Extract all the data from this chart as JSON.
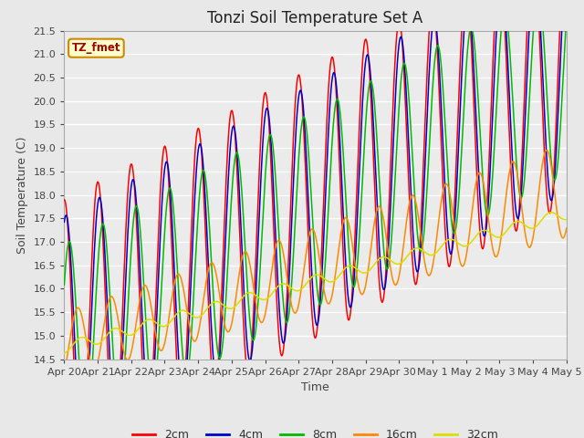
{
  "title": "Tonzi Soil Temperature Set A",
  "xlabel": "Time",
  "ylabel": "Soil Temperature (C)",
  "annotation": "TZ_fmet",
  "ylim": [
    14.5,
    21.5
  ],
  "series_colors": {
    "2cm": "#ff0000",
    "4cm": "#0000cc",
    "8cm": "#00bb00",
    "16cm": "#ff8800",
    "32cm": "#dddd00"
  },
  "legend_labels": [
    "2cm",
    "4cm",
    "8cm",
    "16cm",
    "32cm"
  ],
  "x_tick_labels": [
    "Apr 20",
    "Apr 21",
    "Apr 22",
    "Apr 23",
    "Apr 24",
    "Apr 25",
    "Apr 26",
    "Apr 27",
    "Apr 28",
    "Apr 29",
    "Apr 30",
    "May 1",
    "May 2",
    "May 3",
    "May 4",
    "May 5"
  ],
  "fig_bg_color": "#e8e8e8",
  "plot_bg_color": "#ebebeb",
  "grid_color": "#ffffff",
  "title_fontsize": 12,
  "axis_label_fontsize": 9,
  "tick_fontsize": 8
}
